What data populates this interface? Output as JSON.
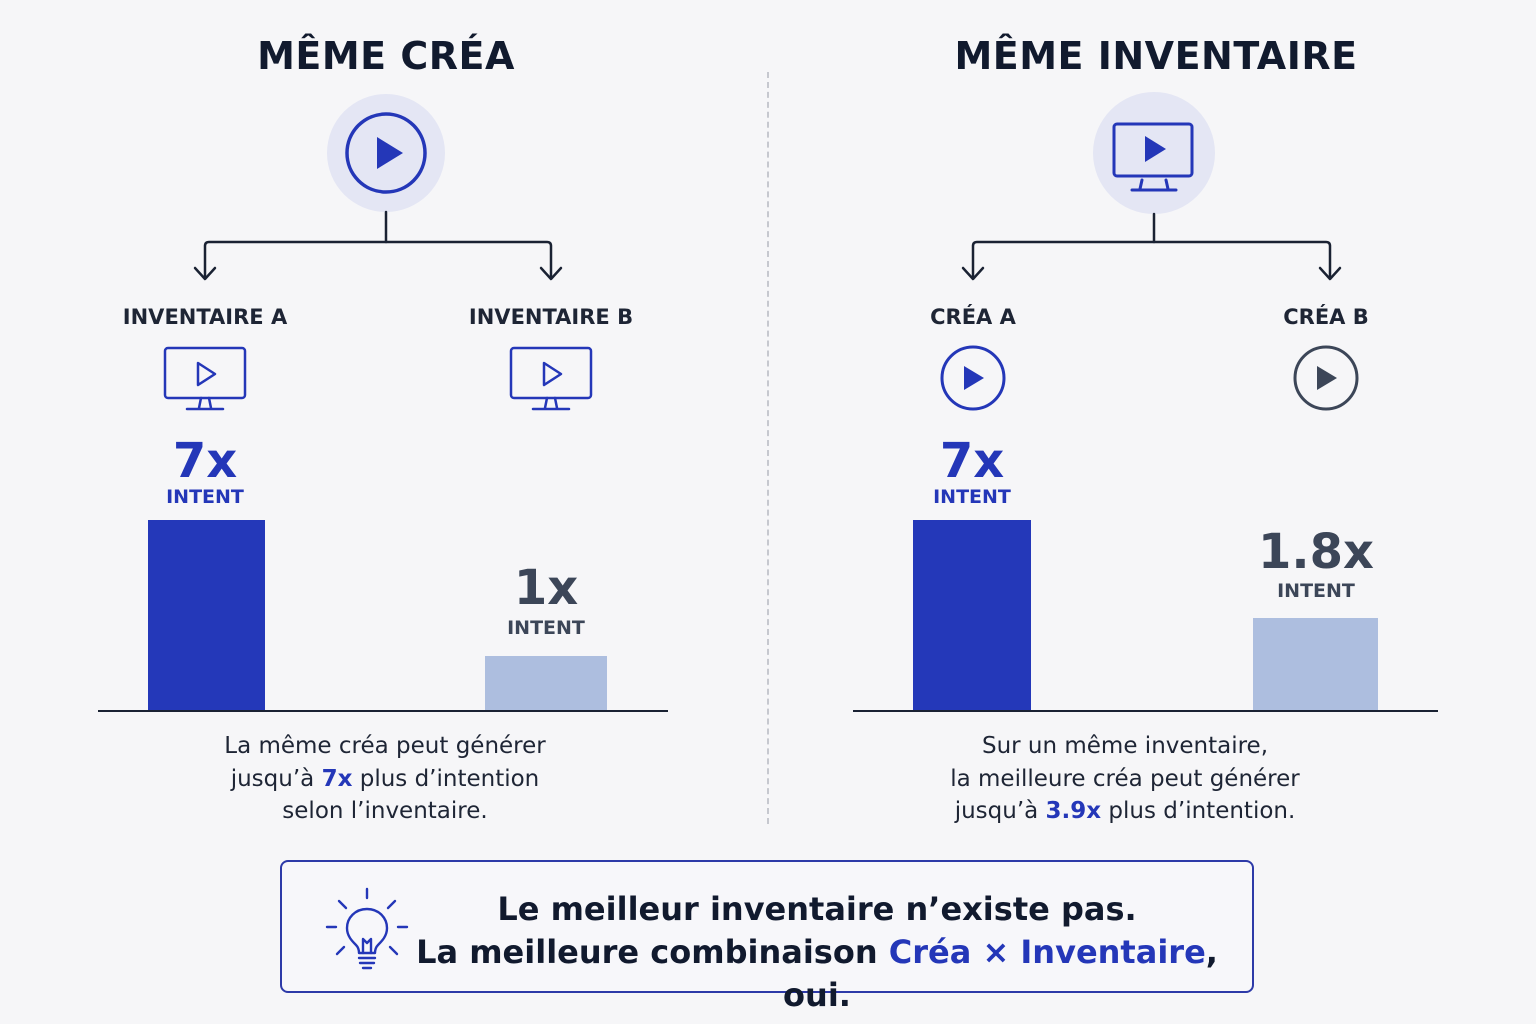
{
  "left": {
    "title": "MÊME CRÉA",
    "root_icon": "play-circle-icon",
    "branches": [
      {
        "label": "INVENTAIRE A",
        "icon": "monitor-play-icon",
        "value": "7x",
        "unit": "INTENT",
        "bar_value": 7
      },
      {
        "label": "INVENTAIRE B",
        "icon": "monitor-play-icon",
        "value": "1x",
        "unit": "INTENT",
        "bar_value": 1
      }
    ],
    "caption": {
      "line1": "La même créa peut générer",
      "line2_pre": "jusqu’à ",
      "line2_hl": "7x",
      "line2_post": " plus d’intention",
      "line3": "selon l’inventaire."
    }
  },
  "right": {
    "title": "MÊME INVENTAIRE",
    "root_icon": "monitor-play-icon",
    "branches": [
      {
        "label": "CRÉA A",
        "icon": "play-circle-icon",
        "value": "7x",
        "unit": "INTENT",
        "bar_value": 7
      },
      {
        "label": "CRÉA B",
        "icon": "play-circle-icon",
        "value": "1.8x",
        "unit": "INTENT",
        "bar_value": 1.8
      }
    ],
    "caption": {
      "line1": "Sur un même inventaire,",
      "line2": "la meilleure créa peut générer",
      "line3_pre": "jusqu’à ",
      "line3_hl": "3.9x",
      "line3_post": " plus d’intention."
    }
  },
  "callout": {
    "icon": "lightbulb-icon",
    "line1": "Le meilleur inventaire n’existe pas.",
    "line2_pre": "La meilleure combinaison ",
    "line2_hl": "Créa × Inventaire",
    "line2_post": ", oui."
  },
  "colors": {
    "accent": "#2437b8",
    "bar_strong": "#2438b9",
    "bar_weak": "#adbedf",
    "icon_bg": "#e4e6f4"
  }
}
